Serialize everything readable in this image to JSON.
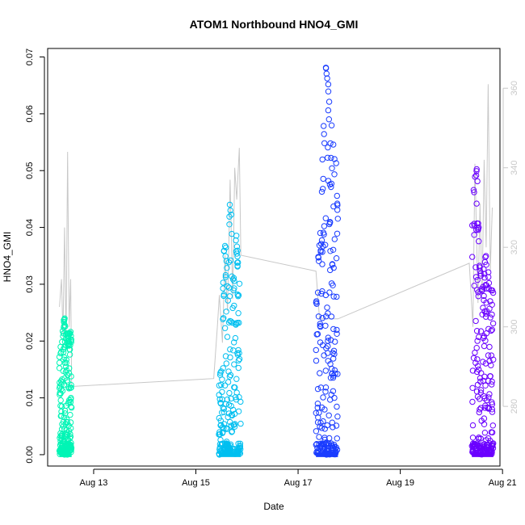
{
  "chart_data": {
    "type": "scatter",
    "title": "ATOM1 Northbound HNO4_GMI",
    "xlabel": "Date",
    "ylabel": "HNO4_GMI",
    "x_unit": "days (August 2016 day-of-month)",
    "xlim": [
      12.1,
      20.95
    ],
    "ylim": [
      -0.002,
      0.0715
    ],
    "x_ticks": [
      {
        "value": 13,
        "label": "Aug 13"
      },
      {
        "value": 15,
        "label": "Aug 15"
      },
      {
        "value": 17,
        "label": "Aug 17"
      },
      {
        "value": 19,
        "label": "Aug 19"
      },
      {
        "value": 21,
        "label": "Aug 21"
      }
    ],
    "y_ticks": [
      0.0,
      0.01,
      0.02,
      0.03,
      0.04,
      0.05,
      0.06,
      0.07
    ],
    "y_tick_labels": [
      "0.00",
      "0.01",
      "0.02",
      "0.03",
      "0.04",
      "0.05",
      "0.06",
      "0.07"
    ],
    "y2_ticks": [
      280,
      300,
      320,
      340,
      360
    ],
    "y2_lim": [
      265,
      370
    ],
    "y2_color": "#c8c8c8",
    "grid": false,
    "legend": "none",
    "series": [
      {
        "color": "#00f5b5",
        "x_range": [
          12.33,
          12.57
        ],
        "envelope": [
          [
            12.33,
            0.0175
          ],
          [
            12.38,
            0.021
          ],
          [
            12.43,
            0.0253
          ],
          [
            12.47,
            0.022
          ],
          [
            12.52,
            0.0215
          ],
          [
            12.57,
            0.0218
          ]
        ]
      },
      {
        "color": "#00bff0",
        "x_range": [
          15.45,
          15.88
        ],
        "envelope": [
          [
            15.45,
            0.0125
          ],
          [
            15.5,
            0.018
          ],
          [
            15.55,
            0.038
          ],
          [
            15.62,
            0.0375
          ],
          [
            15.67,
            0.045
          ],
          [
            15.72,
            0.04
          ],
          [
            15.78,
            0.041
          ],
          [
            15.85,
            0.031
          ],
          [
            15.88,
            0.026
          ]
        ]
      },
      {
        "color": "#1a3cff",
        "x_range": [
          17.35,
          17.78
        ],
        "envelope": [
          [
            17.35,
            0.027
          ],
          [
            17.4,
            0.036
          ],
          [
            17.45,
            0.046
          ],
          [
            17.5,
            0.061
          ],
          [
            17.55,
            0.069
          ],
          [
            17.6,
            0.065
          ],
          [
            17.65,
            0.063
          ],
          [
            17.7,
            0.055
          ],
          [
            17.75,
            0.052
          ],
          [
            17.78,
            0.045
          ]
        ]
      },
      {
        "color": "#6a00ff",
        "x_range": [
          20.4,
          20.82
        ],
        "envelope": [
          [
            20.4,
            0.0415
          ],
          [
            20.45,
            0.054
          ],
          [
            20.5,
            0.053
          ],
          [
            20.55,
            0.035
          ],
          [
            20.6,
            0.031
          ],
          [
            20.65,
            0.0355
          ],
          [
            20.7,
            0.0355
          ],
          [
            20.75,
            0.03
          ],
          [
            20.8,
            0.0295
          ],
          [
            20.82,
            0.029
          ]
        ]
      }
    ],
    "altitude_series": {
      "color": "#c8c8c8",
      "points": [
        [
          12.33,
          305
        ],
        [
          12.37,
          312
        ],
        [
          12.4,
          298
        ],
        [
          12.43,
          325
        ],
        [
          12.46,
          296
        ],
        [
          12.49,
          344
        ],
        [
          12.52,
          300
        ],
        [
          12.55,
          312
        ],
        [
          12.57,
          285
        ],
        [
          15.35,
          287
        ],
        [
          15.42,
          300
        ],
        [
          15.46,
          308
        ],
        [
          15.52,
          296
        ],
        [
          15.57,
          318
        ],
        [
          15.62,
          304
        ],
        [
          15.67,
          337
        ],
        [
          15.72,
          307
        ],
        [
          15.76,
          340
        ],
        [
          15.8,
          332
        ],
        [
          15.85,
          345
        ],
        [
          15.88,
          318
        ],
        [
          17.35,
          314
        ],
        [
          17.42,
          302
        ],
        [
          17.78,
          302
        ],
        [
          20.35,
          316
        ],
        [
          20.42,
          300
        ],
        [
          20.46,
          341
        ],
        [
          20.52,
          306
        ],
        [
          20.56,
          331
        ],
        [
          20.6,
          308
        ],
        [
          20.64,
          342
        ],
        [
          20.68,
          320
        ],
        [
          20.72,
          361
        ],
        [
          20.76,
          314
        ],
        [
          20.8,
          330
        ]
      ]
    }
  }
}
